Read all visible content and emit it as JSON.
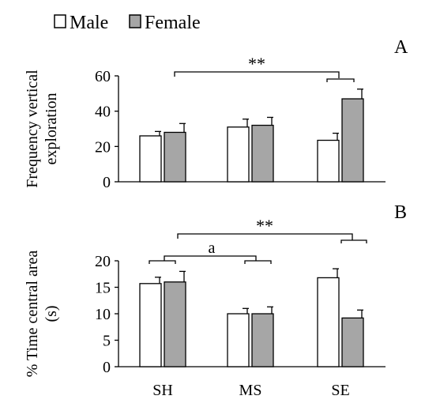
{
  "colors": {
    "male": "#ffffff",
    "female": "#a6a6a6",
    "stroke": "#000000"
  },
  "legend": [
    {
      "label": "Male",
      "color": "#ffffff"
    },
    {
      "label": "Female",
      "color": "#a6a6a6"
    }
  ],
  "chart_data": [
    {
      "type": "bar",
      "panel_label": "A",
      "ylabel": "Frequency vertical exploration",
      "ylabel_lines": [
        "Frequency vertical",
        "exploration"
      ],
      "ylim": [
        0,
        60
      ],
      "yticks": [
        "0",
        "20",
        "40",
        "60"
      ],
      "categories": [
        "SH",
        "MS",
        "SE"
      ],
      "series": [
        {
          "name": "Male",
          "values": [
            26,
            31,
            23.5
          ],
          "errors": [
            2.5,
            4.5,
            4
          ]
        },
        {
          "name": "Female",
          "values": [
            28,
            32,
            47
          ],
          "errors": [
            5,
            4.5,
            5.5
          ]
        }
      ],
      "annotations": {
        "significance": "**"
      }
    },
    {
      "type": "bar",
      "panel_label": "B",
      "ylabel": "% Time central area (s)",
      "ylabel_lines": [
        "% Time central area",
        "(s)"
      ],
      "ylim": [
        0,
        20
      ],
      "yticks": [
        "0",
        "5",
        "10",
        "15",
        "20"
      ],
      "categories": [
        "SH",
        "MS",
        "SE"
      ],
      "series": [
        {
          "name": "Male",
          "values": [
            15.7,
            10,
            16.8
          ],
          "errors": [
            1.2,
            1,
            1.7
          ]
        },
        {
          "name": "Female",
          "values": [
            16,
            10,
            9.2
          ],
          "errors": [
            2,
            1.3,
            1.5
          ]
        }
      ],
      "annotations": {
        "significance": "**",
        "letter": "a"
      }
    }
  ]
}
